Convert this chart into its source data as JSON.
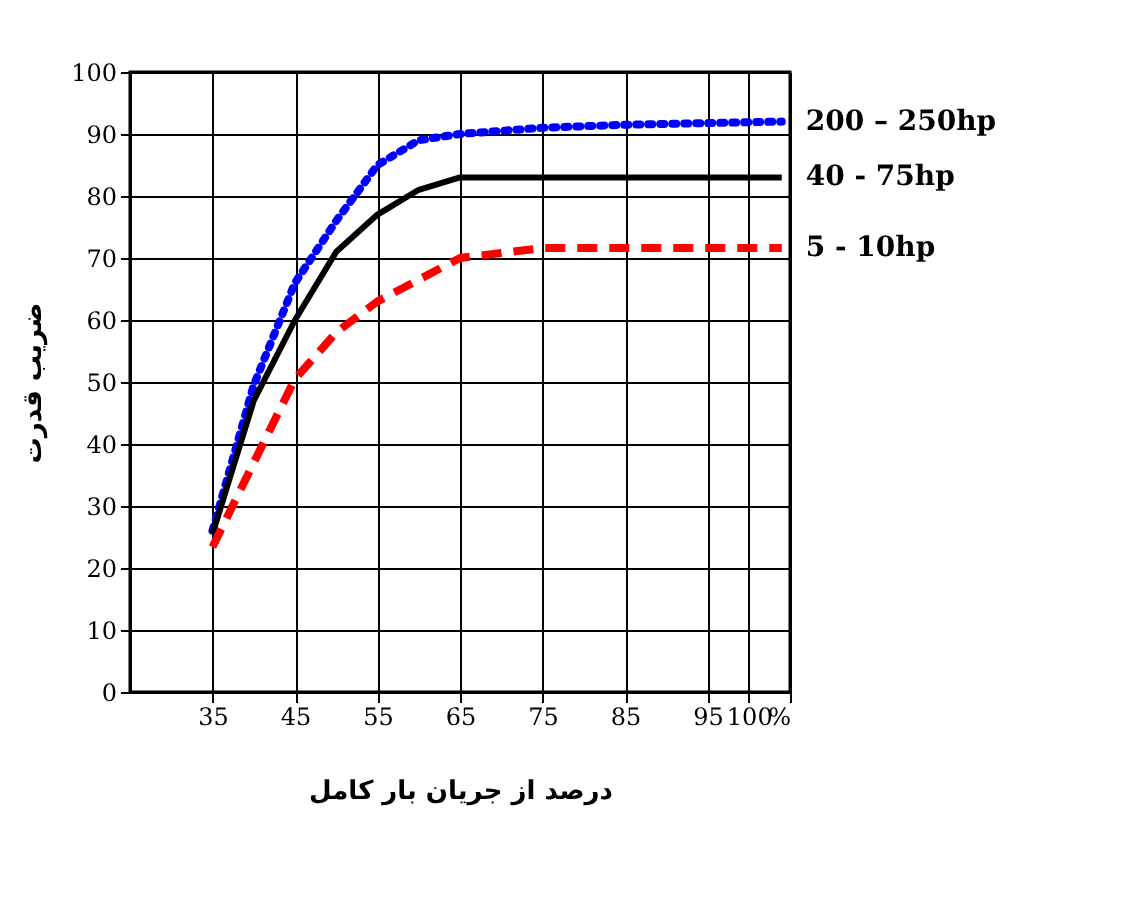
{
  "chart_data": {
    "type": "line",
    "xlabel": "درصد از جریان بار کامل",
    "ylabel": "ضریب قدرت",
    "xlim": [
      25,
      105
    ],
    "xticks": [
      35,
      45,
      55,
      65,
      75,
      85,
      95,
      {
        "value": 100,
        "label": "100"
      },
      {
        "value": 105,
        "label": "%"
      }
    ],
    "ylim": [
      0,
      100
    ],
    "yticks": [
      0,
      10,
      20,
      30,
      40,
      50,
      60,
      70,
      80,
      90,
      100
    ],
    "grid": true,
    "marker": "none",
    "x": [
      35,
      40,
      45,
      50,
      55,
      60,
      65,
      75,
      85,
      104
    ],
    "series": [
      {
        "name": "200 – 250hp",
        "color": "#0000ff",
        "line_style": "dotted",
        "values": [
          26,
          49.5,
          66,
          76,
          85,
          89,
          90,
          91,
          91.5,
          92
        ]
      },
      {
        "name": "40 - 75hp",
        "color": "#000000",
        "line_style": "solid",
        "values": [
          25.5,
          47,
          60,
          71,
          77,
          81,
          83,
          83,
          83,
          83
        ]
      },
      {
        "name": "5 - 10hp",
        "color": "#ff0000",
        "line_style": "dashed",
        "values": [
          23.4,
          37,
          50.5,
          58,
          63,
          66.5,
          70,
          71.6,
          71.6,
          71.6
        ]
      }
    ]
  }
}
